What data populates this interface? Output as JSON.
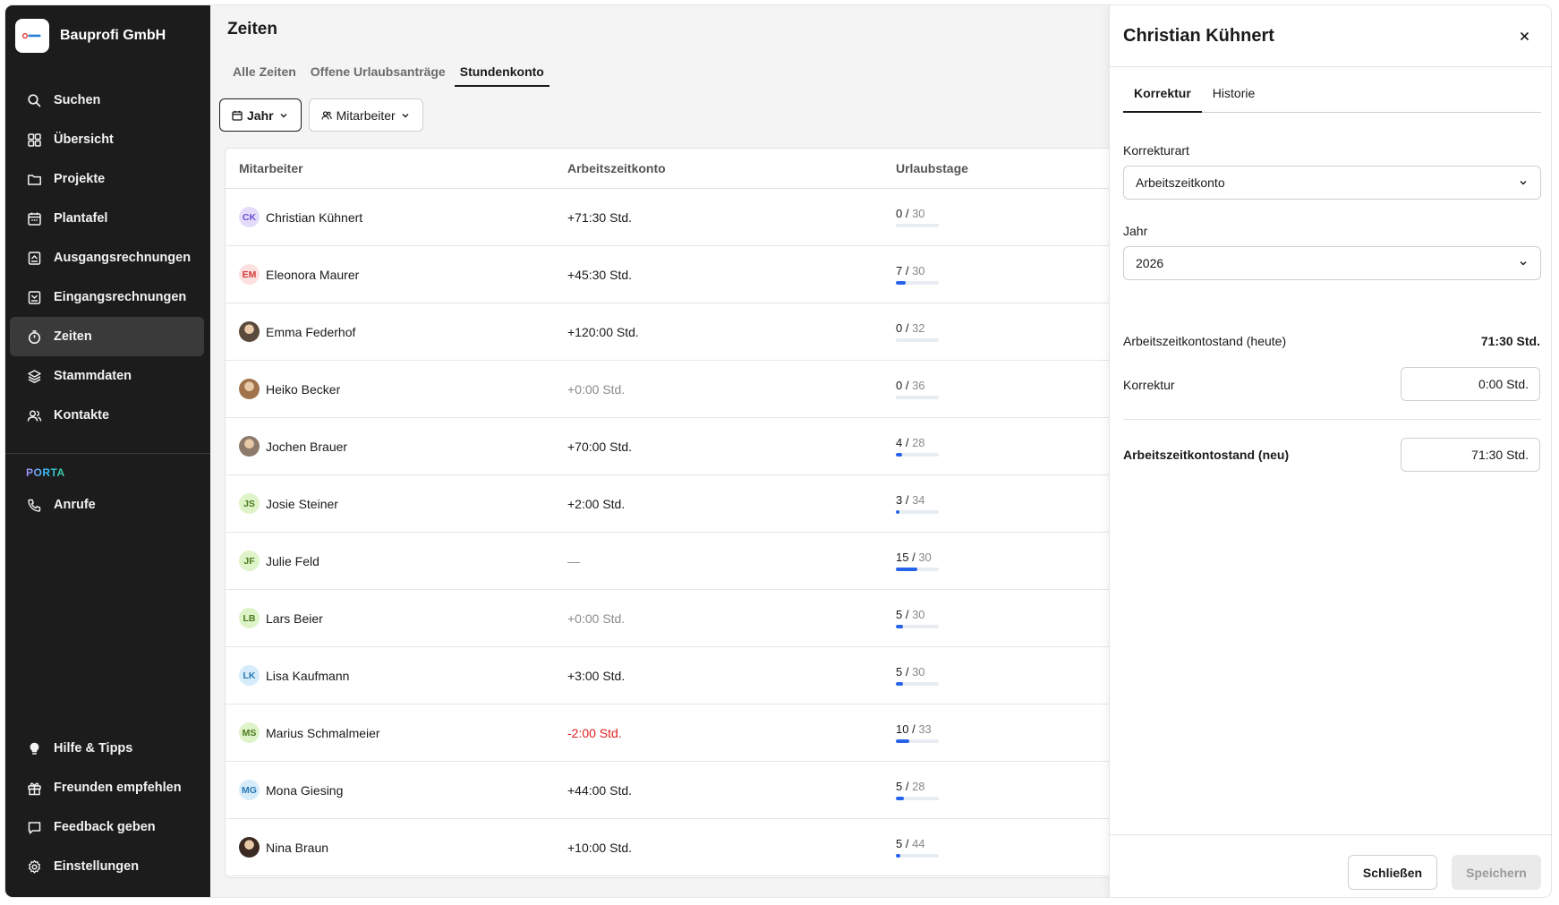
{
  "sidebar": {
    "company": "Bauprofi GmbH",
    "items": [
      {
        "label": "Suchen",
        "icon": "search-icon"
      },
      {
        "label": "Übersicht",
        "icon": "grid-icon"
      },
      {
        "label": "Projekte",
        "icon": "folder-icon"
      },
      {
        "label": "Plantafel",
        "icon": "calendar-icon"
      },
      {
        "label": "Ausgangsrechnungen",
        "icon": "invoice-out-icon"
      },
      {
        "label": "Eingangsrechnungen",
        "icon": "invoice-in-icon"
      },
      {
        "label": "Zeiten",
        "icon": "stopwatch-icon",
        "active": true
      },
      {
        "label": "Stammdaten",
        "icon": "layers-icon"
      },
      {
        "label": "Kontakte",
        "icon": "contacts-icon"
      }
    ],
    "section_label": "PORTA",
    "porta_items": [
      {
        "label": "Anrufe",
        "icon": "phone-icon"
      }
    ],
    "bottom_items": [
      {
        "label": "Hilfe & Tipps",
        "icon": "lightbulb-icon"
      },
      {
        "label": "Freunden empfehlen",
        "icon": "gift-icon"
      },
      {
        "label": "Feedback geben",
        "icon": "chat-icon"
      },
      {
        "label": "Einstellungen",
        "icon": "gear-icon"
      }
    ]
  },
  "main": {
    "title": "Zeiten",
    "tabs": [
      {
        "label": "Alle Zeiten"
      },
      {
        "label": "Offene Urlaubsanträge"
      },
      {
        "label": "Stundenkonto",
        "active": true
      }
    ],
    "filters": {
      "year": "Jahr",
      "employee": "Mitarbeiter"
    },
    "table": {
      "columns": [
        "Mitarbeiter",
        "Arbeitszeitkonto",
        "Urlaubstage"
      ],
      "rows": [
        {
          "initials": "CK",
          "name": "Christian Kühnert",
          "account": "+71:30 Std.",
          "type": "pos",
          "used": "0",
          "total": "30",
          "avatar_bg": "#e3ddfb",
          "avatar_fg": "#6b4fd1"
        },
        {
          "initials": "EM",
          "name": "Eleonora Maurer",
          "account": "+45:30 Std.",
          "type": "pos",
          "used": "7",
          "total": "30",
          "avatar_bg": "#fde0e0",
          "avatar_fg": "#d23a3a"
        },
        {
          "initials": "",
          "name": "Emma Federhof",
          "account": "+120:00 Std.",
          "type": "pos",
          "used": "0",
          "total": "32",
          "avatar_bg": "#5a4a3c",
          "avatar_fg": "#ffffff"
        },
        {
          "initials": "",
          "name": "Heiko Becker",
          "account": "+0:00 Std.",
          "type": "zero",
          "used": "0",
          "total": "36",
          "avatar_bg": "#a0734a",
          "avatar_fg": "#ffffff"
        },
        {
          "initials": "",
          "name": "Jochen Brauer",
          "account": "+70:00 Std.",
          "type": "pos",
          "used": "4",
          "total": "28",
          "avatar_bg": "#8d7a6a",
          "avatar_fg": "#ffffff"
        },
        {
          "initials": "JS",
          "name": "Josie Steiner",
          "account": "+2:00 Std.",
          "type": "pos",
          "used": "3",
          "total": "34",
          "avatar_bg": "#dff3c9",
          "avatar_fg": "#4a7a1e"
        },
        {
          "initials": "JF",
          "name": "Julie Feld",
          "account": "—",
          "type": "zero",
          "used": "15",
          "total": "30",
          "avatar_bg": "#dff3c9",
          "avatar_fg": "#4a7a1e"
        },
        {
          "initials": "LB",
          "name": "Lars Beier",
          "account": "+0:00 Std.",
          "type": "zero",
          "used": "5",
          "total": "30",
          "avatar_bg": "#dff3c9",
          "avatar_fg": "#4a7a1e"
        },
        {
          "initials": "LK",
          "name": "Lisa Kaufmann",
          "account": "+3:00 Std.",
          "type": "pos",
          "used": "5",
          "total": "30",
          "avatar_bg": "#d6ecfa",
          "avatar_fg": "#2a78b5"
        },
        {
          "initials": "MS",
          "name": "Marius Schmalmeier",
          "account": "-2:00 Std.",
          "type": "neg",
          "used": "10",
          "total": "33",
          "avatar_bg": "#dff3c9",
          "avatar_fg": "#4a7a1e"
        },
        {
          "initials": "MG",
          "name": "Mona Giesing",
          "account": "+44:00 Std.",
          "type": "pos",
          "used": "5",
          "total": "28",
          "avatar_bg": "#d6ecfa",
          "avatar_fg": "#2a78b5"
        },
        {
          "initials": "",
          "name": "Nina Braun",
          "account": "+10:00 Std.",
          "type": "pos",
          "used": "5",
          "total": "44",
          "avatar_bg": "#3a2a22",
          "avatar_fg": "#ffffff"
        }
      ]
    }
  },
  "panel": {
    "title": "Christian Kühnert",
    "tabs": [
      {
        "label": "Korrektur",
        "active": true
      },
      {
        "label": "Historie"
      }
    ],
    "correction_type_label": "Korrekturart",
    "correction_type_value": "Arbeitszeitkonto",
    "year_label": "Jahr",
    "year_value": "2026",
    "balance_today_label": "Arbeitszeitkontostand (heute)",
    "balance_today_value": "71:30 Std.",
    "correction_label": "Korrektur",
    "correction_value": "0:00 Std.",
    "balance_new_label": "Arbeitszeitkontostand (neu)",
    "balance_new_value": "71:30 Std.",
    "close_button": "Schließen",
    "save_button": "Speichern"
  },
  "colors": {
    "sidebar_bg": "#1c1c1c",
    "accent_bar": "#2563eb",
    "negative": "#e02020"
  }
}
